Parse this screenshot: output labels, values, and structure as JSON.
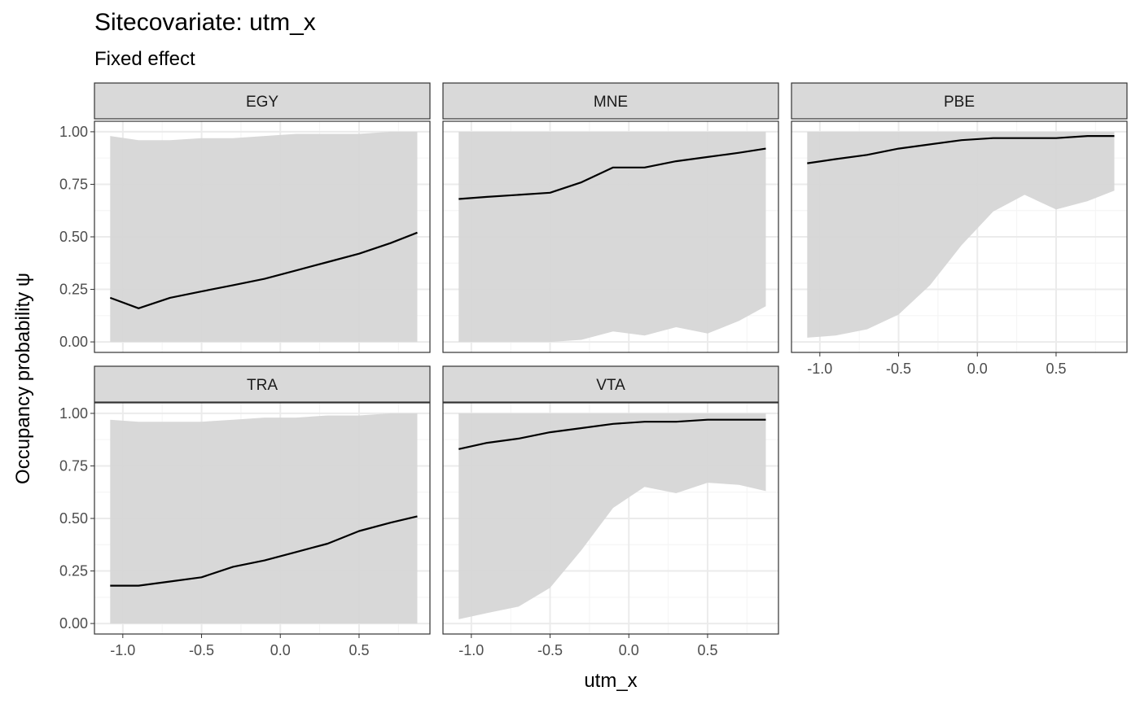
{
  "title": "Sitecovariate: utm_x",
  "subtitle": "Fixed effect",
  "chart_data": {
    "type": "area",
    "xlabel": "utm_x",
    "ylabel": "Occupancy probability  ψ",
    "xlim": [
      -1.08,
      0.87
    ],
    "ylim": [
      0,
      1
    ],
    "x_ticks": [
      -1.0,
      -0.5,
      0.0,
      0.5
    ],
    "x_tick_labels": [
      "-1.0",
      "-0.5",
      "0.0",
      "0.5"
    ],
    "y_ticks": [
      0,
      0.25,
      0.5,
      0.75,
      1.0
    ],
    "y_tick_labels": [
      "0.00",
      "0.25",
      "0.50",
      "0.75",
      "1.00"
    ],
    "grid": true,
    "legend": "none",
    "colors": {
      "ribbon": "#d6d6d6",
      "line": "#000000",
      "strip": "#d9d9d9",
      "grid": "#ebebeb",
      "border": "#333333"
    },
    "x": [
      -1.08,
      -0.9,
      -0.7,
      -0.5,
      -0.3,
      -0.1,
      0.1,
      0.3,
      0.5,
      0.7,
      0.87
    ],
    "panels": [
      {
        "label": "EGY",
        "mean": [
          0.21,
          0.16,
          0.21,
          0.24,
          0.27,
          0.3,
          0.34,
          0.38,
          0.42,
          0.47,
          0.52
        ],
        "lower": [
          0.0,
          0.0,
          0.0,
          0.0,
          0.0,
          0.0,
          0.0,
          0.0,
          0.0,
          0.0,
          0.0
        ],
        "upper": [
          0.98,
          0.96,
          0.96,
          0.97,
          0.97,
          0.98,
          0.99,
          0.99,
          0.99,
          1.0,
          1.0
        ]
      },
      {
        "label": "MNE",
        "mean": [
          0.68,
          0.69,
          0.7,
          0.71,
          0.76,
          0.83,
          0.83,
          0.86,
          0.88,
          0.9,
          0.92
        ],
        "lower": [
          0.0,
          0.0,
          0.0,
          0.0,
          0.01,
          0.05,
          0.03,
          0.07,
          0.04,
          0.1,
          0.17
        ],
        "upper": [
          1.0,
          1.0,
          1.0,
          1.0,
          1.0,
          1.0,
          1.0,
          1.0,
          1.0,
          1.0,
          1.0
        ]
      },
      {
        "label": "PBE",
        "mean": [
          0.85,
          0.87,
          0.89,
          0.92,
          0.94,
          0.96,
          0.97,
          0.97,
          0.97,
          0.98,
          0.98
        ],
        "lower": [
          0.02,
          0.03,
          0.06,
          0.13,
          0.27,
          0.46,
          0.62,
          0.7,
          0.63,
          0.67,
          0.72
        ],
        "upper": [
          1.0,
          1.0,
          1.0,
          1.0,
          1.0,
          1.0,
          1.0,
          1.0,
          1.0,
          1.0,
          1.0
        ]
      },
      {
        "label": "TRA",
        "mean": [
          0.18,
          0.18,
          0.2,
          0.22,
          0.27,
          0.3,
          0.34,
          0.38,
          0.44,
          0.48,
          0.51
        ],
        "lower": [
          0.0,
          0.0,
          0.0,
          0.0,
          0.0,
          0.0,
          0.0,
          0.0,
          0.0,
          0.0,
          0.0
        ],
        "upper": [
          0.97,
          0.96,
          0.96,
          0.96,
          0.97,
          0.98,
          0.98,
          0.99,
          0.99,
          1.0,
          1.0
        ]
      },
      {
        "label": "VTA",
        "mean": [
          0.83,
          0.86,
          0.88,
          0.91,
          0.93,
          0.95,
          0.96,
          0.96,
          0.97,
          0.97,
          0.97
        ],
        "lower": [
          0.02,
          0.05,
          0.08,
          0.17,
          0.35,
          0.55,
          0.65,
          0.62,
          0.67,
          0.66,
          0.63
        ],
        "upper": [
          1.0,
          1.0,
          1.0,
          1.0,
          1.0,
          1.0,
          1.0,
          1.0,
          1.0,
          1.0,
          1.0
        ]
      }
    ]
  }
}
